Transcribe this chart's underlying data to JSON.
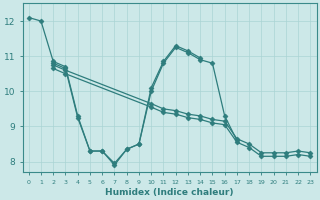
{
  "xlabel": "Humidex (Indice chaleur)",
  "bg_color": "#cce8e8",
  "line_color": "#2e7d7d",
  "marker": "D",
  "markersize": 2.5,
  "linewidth": 0.9,
  "xlim": [
    -0.5,
    23.5
  ],
  "ylim": [
    7.7,
    12.5
  ],
  "yticks": [
    8,
    9,
    10,
    11,
    12
  ],
  "xticks": [
    0,
    1,
    2,
    3,
    4,
    5,
    6,
    7,
    8,
    9,
    10,
    11,
    12,
    13,
    14,
    15,
    16,
    17,
    18,
    19,
    20,
    21,
    22,
    23
  ],
  "lines": [
    {
      "x": [
        0,
        1,
        2,
        3,
        4,
        5,
        6,
        7,
        8,
        9,
        10,
        11,
        12,
        13,
        14
      ],
      "y": [
        12.1,
        12.0,
        10.85,
        10.7,
        9.3,
        8.3,
        8.3,
        7.9,
        8.35,
        8.5,
        10.1,
        10.85,
        11.3,
        11.15,
        10.95
      ]
    },
    {
      "x": [
        2,
        3,
        10,
        11,
        12,
        13,
        14,
        15,
        16,
        17,
        18,
        19,
        20,
        21,
        22,
        23
      ],
      "y": [
        10.75,
        10.6,
        9.65,
        9.5,
        9.45,
        9.35,
        9.3,
        9.2,
        9.15,
        8.65,
        8.5,
        8.25,
        8.25,
        8.25,
        8.3,
        8.25
      ]
    },
    {
      "x": [
        2,
        3,
        10,
        11,
        12,
        13,
        14,
        15,
        16,
        17,
        18,
        19,
        20,
        21,
        22,
        23
      ],
      "y": [
        10.65,
        10.5,
        9.55,
        9.4,
        9.35,
        9.25,
        9.2,
        9.1,
        9.05,
        8.55,
        8.4,
        8.15,
        8.15,
        8.15,
        8.2,
        8.15
      ]
    },
    {
      "x": [
        2,
        3,
        4,
        5,
        6,
        7,
        8,
        9,
        10,
        11,
        12,
        13,
        14,
        15,
        16,
        17
      ],
      "y": [
        10.8,
        10.65,
        9.25,
        8.3,
        8.3,
        7.95,
        8.35,
        8.5,
        10.0,
        10.8,
        11.25,
        11.1,
        10.9,
        10.8,
        9.3,
        8.6
      ]
    }
  ]
}
